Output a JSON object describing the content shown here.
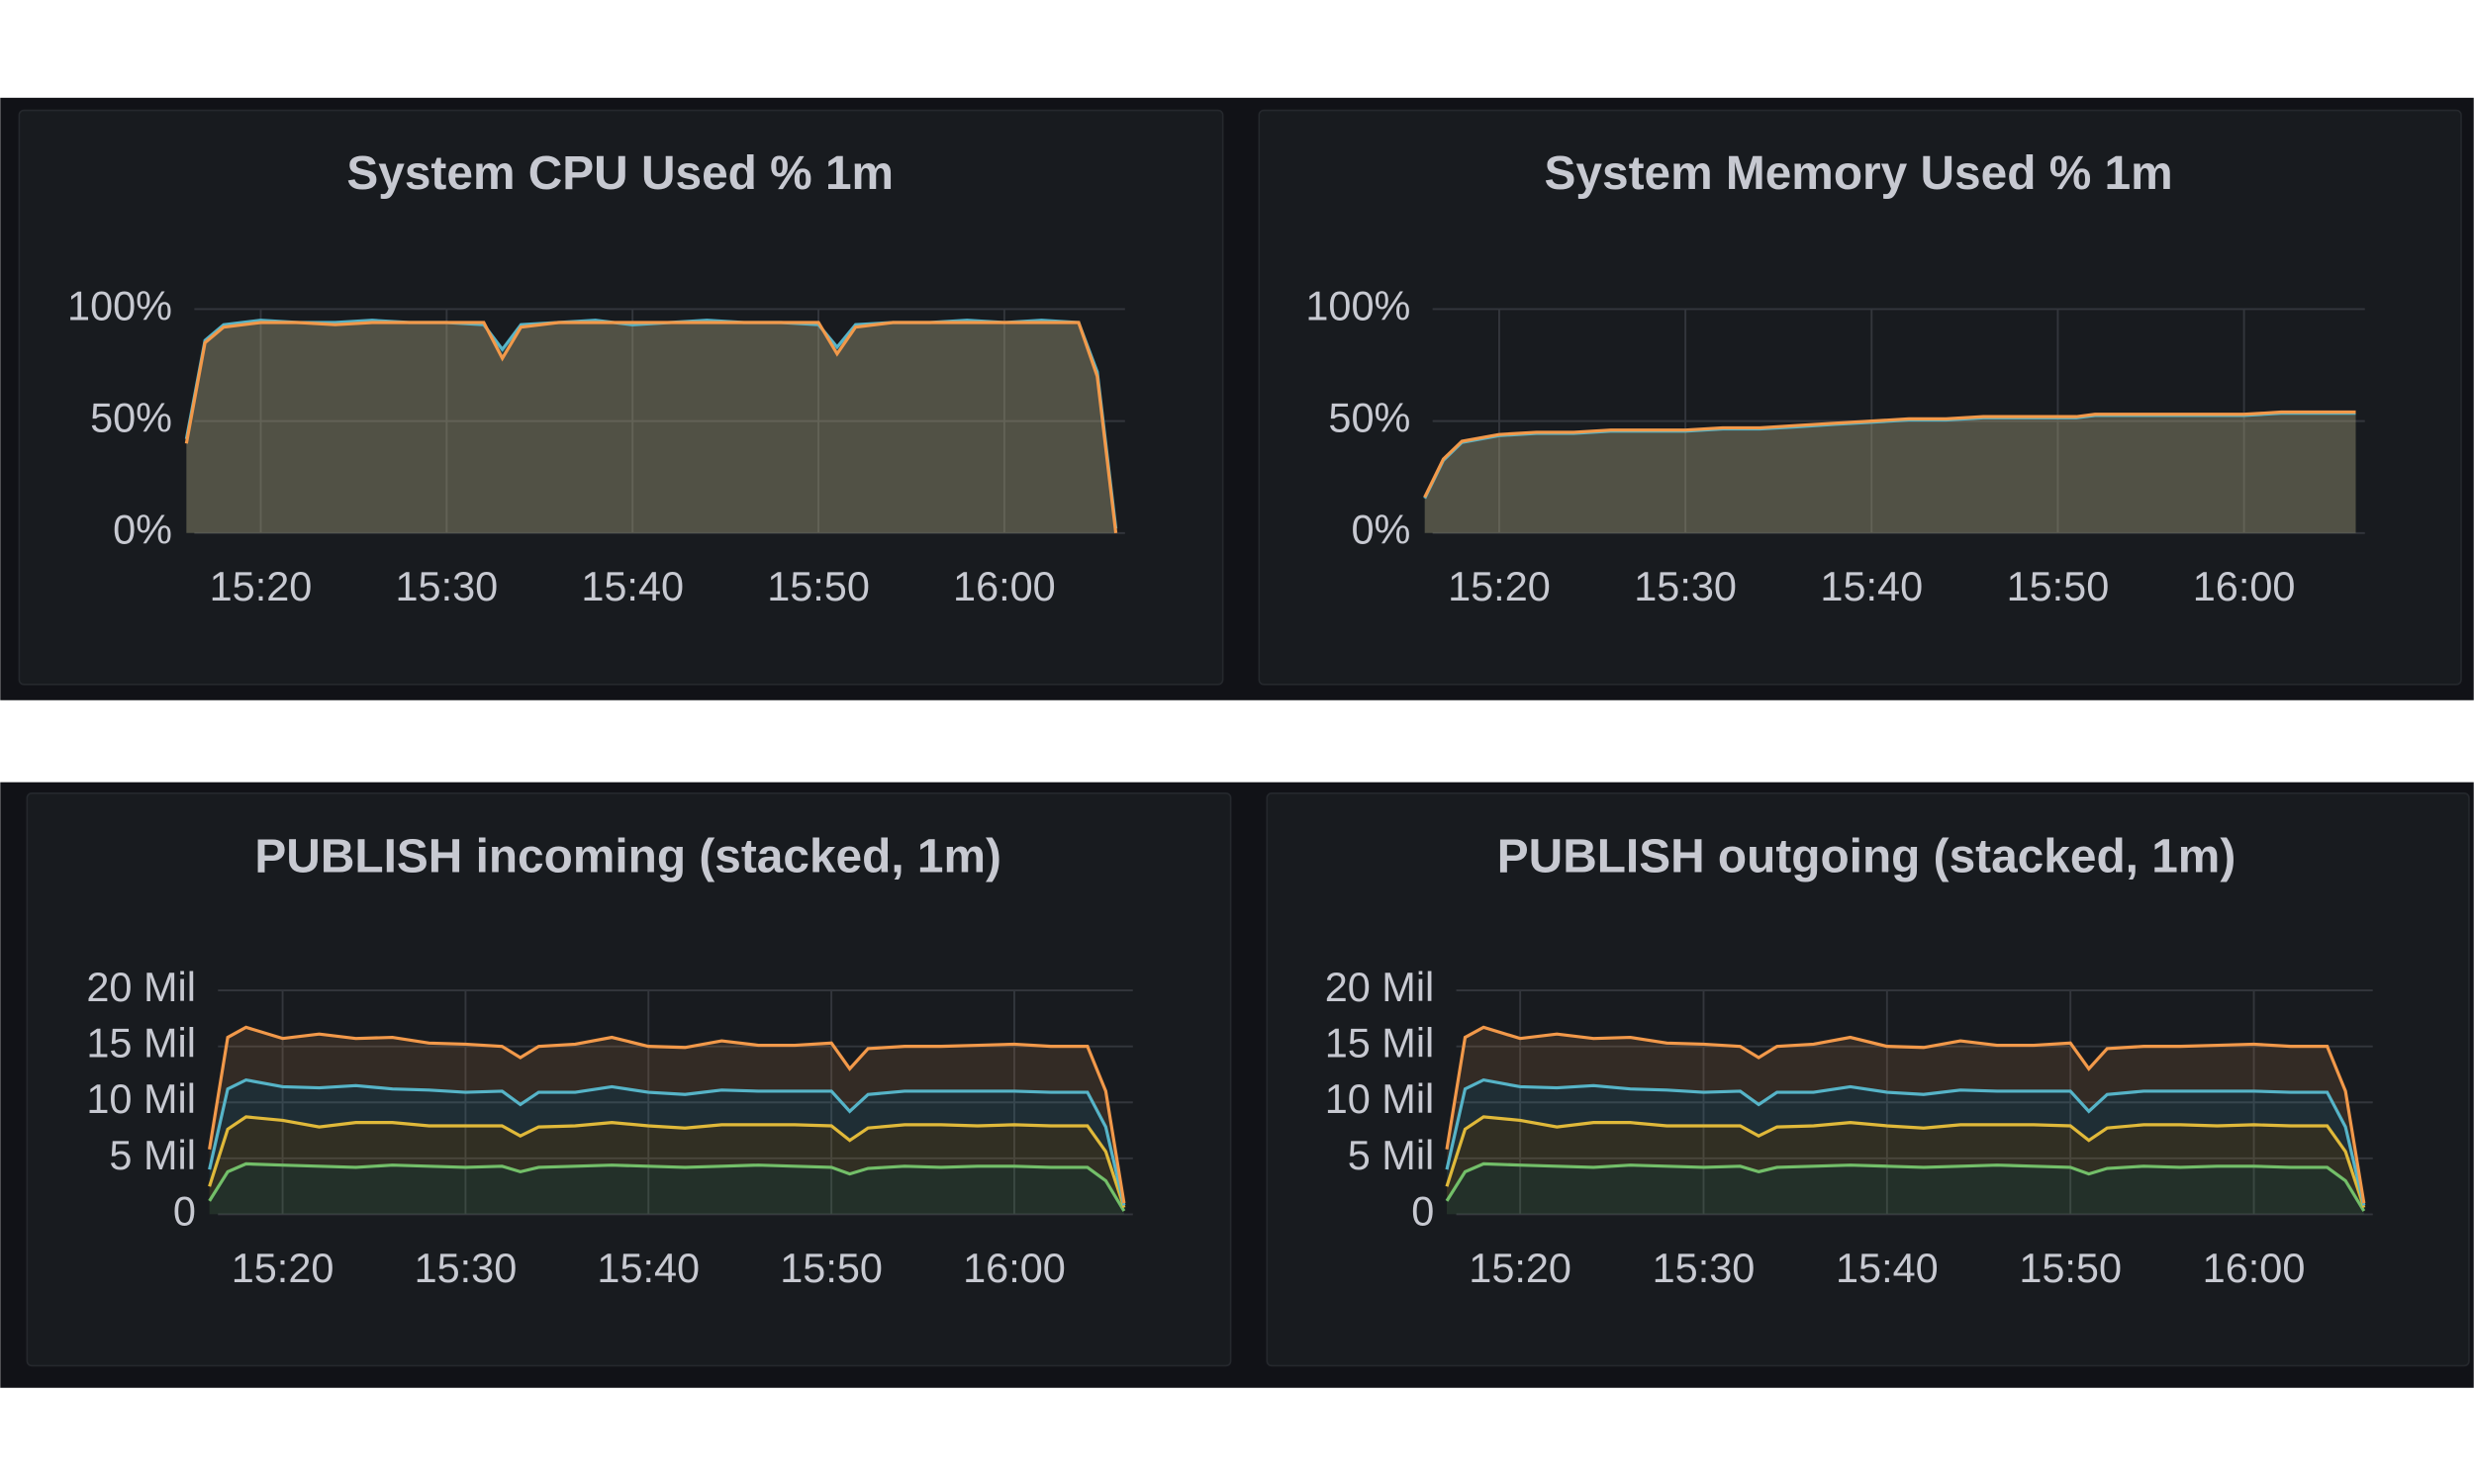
{
  "chart_data": [
    {
      "type": "area",
      "title": "System CPU Used % 1m",
      "x": [
        "15:16",
        "15:17",
        "15:18",
        "15:20",
        "15:22",
        "15:24",
        "15:26",
        "15:28",
        "15:30",
        "15:32",
        "15:33",
        "15:34",
        "15:36",
        "15:38",
        "15:40",
        "15:42",
        "15:44",
        "15:46",
        "15:48",
        "15:50",
        "15:51",
        "15:52",
        "15:54",
        "15:56",
        "15:58",
        "16:00",
        "16:02",
        "16:04",
        "16:05",
        "16:06"
      ],
      "xlim": [
        "15:16",
        "16:07"
      ],
      "xticks": [
        "15:20",
        "15:30",
        "15:40",
        "15:50",
        "16:00"
      ],
      "ylim": [
        0,
        100
      ],
      "yticks": [
        {
          "value": 0,
          "label": "0%"
        },
        {
          "value": 50,
          "label": "50%"
        },
        {
          "value": 100,
          "label": "100%"
        }
      ],
      "grid": true,
      "series": [
        {
          "color": "#56b4c8",
          "values": [
            42,
            86,
            93,
            95,
            94,
            94,
            95,
            94,
            94,
            93,
            82,
            93,
            94,
            95,
            93,
            94,
            95,
            94,
            94,
            93,
            83,
            93,
            94,
            94,
            95,
            94,
            95,
            94,
            72,
            2
          ]
        },
        {
          "color": "#f2994a",
          "values": [
            40,
            85,
            92,
            94,
            94,
            93,
            94,
            94,
            94,
            94,
            78,
            92,
            94,
            94,
            94,
            94,
            94,
            94,
            94,
            94,
            80,
            92,
            94,
            94,
            94,
            94,
            94,
            94,
            70,
            0
          ]
        }
      ]
    },
    {
      "type": "area",
      "title": "System Memory Used % 1m",
      "x": [
        "15:16",
        "15:17",
        "15:18",
        "15:20",
        "15:22",
        "15:24",
        "15:26",
        "15:28",
        "15:30",
        "15:32",
        "15:33",
        "15:34",
        "15:36",
        "15:38",
        "15:40",
        "15:42",
        "15:44",
        "15:46",
        "15:48",
        "15:50",
        "15:51",
        "15:52",
        "15:54",
        "15:56",
        "15:58",
        "16:00",
        "16:02",
        "16:04",
        "16:05",
        "16:06"
      ],
      "xlim": [
        "15:16",
        "16:07"
      ],
      "xticks": [
        "15:20",
        "15:30",
        "15:40",
        "15:50",
        "16:00"
      ],
      "ylim": [
        0,
        100
      ],
      "yticks": [
        {
          "value": 0,
          "label": "0%"
        },
        {
          "value": 50,
          "label": "50%"
        },
        {
          "value": 100,
          "label": "100%"
        }
      ],
      "grid": true,
      "series": [
        {
          "color": "#56b4c8",
          "values": [
            15.5,
            32.5,
            40.5,
            43.5,
            44.5,
            44.5,
            45.5,
            45.5,
            45.5,
            46.5,
            46.5,
            46.5,
            47.5,
            48.5,
            49.5,
            50.5,
            50.5,
            51.5,
            51.5,
            51.5,
            51.5,
            52.5,
            52.5,
            52.5,
            52.5,
            52.5,
            53.5,
            53.5,
            53.5,
            53.5
          ]
        },
        {
          "color": "#f2994a",
          "values": [
            16,
            33,
            41,
            44,
            45,
            45,
            46,
            46,
            46,
            47,
            47,
            47,
            48,
            49,
            50,
            51,
            51,
            52,
            52,
            52,
            52,
            53,
            53,
            53,
            53,
            53,
            54,
            54,
            54,
            54
          ]
        }
      ]
    },
    {
      "type": "stacked_area",
      "title": "PUBLISH incoming (stacked, 1m)",
      "x": [
        "15:16",
        "15:17",
        "15:18",
        "15:20",
        "15:22",
        "15:24",
        "15:26",
        "15:28",
        "15:30",
        "15:32",
        "15:33",
        "15:34",
        "15:36",
        "15:38",
        "15:40",
        "15:42",
        "15:44",
        "15:46",
        "15:48",
        "15:50",
        "15:51",
        "15:52",
        "15:54",
        "15:56",
        "15:58",
        "16:00",
        "16:02",
        "16:04",
        "16:05",
        "16:06"
      ],
      "xlim": [
        "15:16",
        "16:07"
      ],
      "xticks": [
        "15:20",
        "15:30",
        "15:40",
        "15:50",
        "16:00"
      ],
      "ylim": [
        0,
        20000000
      ],
      "yticks": [
        0,
        {
          "value": 5000000,
          "label": "5 Mil"
        },
        {
          "value": 10000000,
          "label": "10 Mil"
        },
        {
          "value": 15000000,
          "label": "15 Mil"
        },
        {
          "value": 20000000,
          "label": "20 Mil"
        }
      ],
      "grid": true,
      "series": [
        {
          "color": "#73bf69",
          "values": [
            1200000,
            3800000,
            4500000,
            4400000,
            4300000,
            4200000,
            4400000,
            4300000,
            4200000,
            4300000,
            3800000,
            4200000,
            4300000,
            4400000,
            4300000,
            4200000,
            4300000,
            4400000,
            4300000,
            4200000,
            3600000,
            4100000,
            4300000,
            4200000,
            4300000,
            4300000,
            4200000,
            4200000,
            3000000,
            300000
          ]
        },
        {
          "color": "#e0b93a",
          "values": [
            1300000,
            3800000,
            4200000,
            4000000,
            3500000,
            4000000,
            3800000,
            3600000,
            3700000,
            3600000,
            3200000,
            3600000,
            3600000,
            3800000,
            3600000,
            3500000,
            3700000,
            3600000,
            3700000,
            3700000,
            3000000,
            3600000,
            3700000,
            3800000,
            3600000,
            3700000,
            3700000,
            3700000,
            2600000,
            300000
          ]
        },
        {
          "color": "#56b4c8",
          "values": [
            1500000,
            3600000,
            3300000,
            3000000,
            3500000,
            3300000,
            3000000,
            3200000,
            3000000,
            3100000,
            2800000,
            3100000,
            3000000,
            3200000,
            3000000,
            3000000,
            3100000,
            3000000,
            3000000,
            3100000,
            2600000,
            3000000,
            3000000,
            3000000,
            3100000,
            3000000,
            3000000,
            3000000,
            2200000,
            200000
          ]
        },
        {
          "color": "#f2994a",
          "values": [
            1800000,
            4600000,
            4700000,
            4300000,
            4800000,
            4200000,
            4600000,
            4200000,
            4300000,
            4000000,
            4200000,
            4100000,
            4300000,
            4400000,
            4100000,
            4200000,
            4400000,
            4100000,
            4100000,
            4300000,
            3800000,
            4100000,
            4000000,
            4000000,
            4100000,
            4200000,
            4100000,
            4100000,
            3200000,
            200000
          ]
        }
      ]
    },
    {
      "type": "stacked_area",
      "title": "PUBLISH outgoing (stacked, 1m)",
      "x": [
        "15:16",
        "15:17",
        "15:18",
        "15:20",
        "15:22",
        "15:24",
        "15:26",
        "15:28",
        "15:30",
        "15:32",
        "15:33",
        "15:34",
        "15:36",
        "15:38",
        "15:40",
        "15:42",
        "15:44",
        "15:46",
        "15:48",
        "15:50",
        "15:51",
        "15:52",
        "15:54",
        "15:56",
        "15:58",
        "16:00",
        "16:02",
        "16:04",
        "16:05",
        "16:06"
      ],
      "xlim": [
        "15:16",
        "16:07"
      ],
      "xticks": [
        "15:20",
        "15:30",
        "15:40",
        "15:50",
        "16:00"
      ],
      "ylim": [
        0,
        20000000
      ],
      "yticks": [
        0,
        {
          "value": 5000000,
          "label": "5 Mil"
        },
        {
          "value": 10000000,
          "label": "10 Mil"
        },
        {
          "value": 15000000,
          "label": "15 Mil"
        },
        {
          "value": 20000000,
          "label": "20 Mil"
        }
      ],
      "grid": true,
      "series": [
        {
          "color": "#73bf69",
          "values": [
            1200000,
            3800000,
            4500000,
            4400000,
            4300000,
            4200000,
            4400000,
            4300000,
            4200000,
            4300000,
            3800000,
            4200000,
            4300000,
            4400000,
            4300000,
            4200000,
            4300000,
            4400000,
            4300000,
            4200000,
            3600000,
            4100000,
            4300000,
            4200000,
            4300000,
            4300000,
            4200000,
            4200000,
            3000000,
            300000
          ]
        },
        {
          "color": "#e0b93a",
          "values": [
            1300000,
            3800000,
            4200000,
            4000000,
            3500000,
            4000000,
            3800000,
            3600000,
            3700000,
            3600000,
            3200000,
            3600000,
            3600000,
            3800000,
            3600000,
            3500000,
            3700000,
            3600000,
            3700000,
            3700000,
            3000000,
            3600000,
            3700000,
            3800000,
            3600000,
            3700000,
            3700000,
            3700000,
            2600000,
            300000
          ]
        },
        {
          "color": "#56b4c8",
          "values": [
            1500000,
            3600000,
            3300000,
            3000000,
            3500000,
            3300000,
            3000000,
            3200000,
            3000000,
            3100000,
            2800000,
            3100000,
            3000000,
            3200000,
            3000000,
            3000000,
            3100000,
            3000000,
            3000000,
            3100000,
            2600000,
            3000000,
            3000000,
            3000000,
            3100000,
            3000000,
            3000000,
            3000000,
            2200000,
            200000
          ]
        },
        {
          "color": "#f2994a",
          "values": [
            1800000,
            4600000,
            4700000,
            4300000,
            4800000,
            4200000,
            4600000,
            4200000,
            4300000,
            4000000,
            4200000,
            4100000,
            4300000,
            4400000,
            4100000,
            4200000,
            4400000,
            4100000,
            4100000,
            4300000,
            3800000,
            4100000,
            4000000,
            4000000,
            4100000,
            4200000,
            4100000,
            4100000,
            3200000,
            200000
          ]
        }
      ]
    }
  ]
}
